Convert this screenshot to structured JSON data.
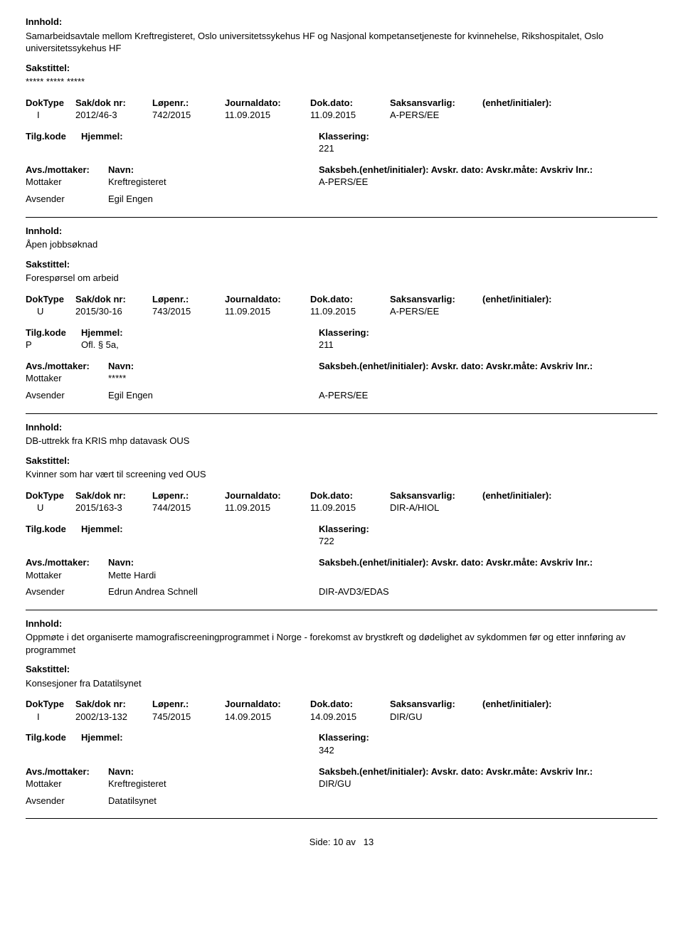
{
  "labels": {
    "innhold": "Innhold:",
    "sakstittel": "Sakstittel:",
    "doktype": "DokType",
    "sakdok": "Sak/dok nr:",
    "lopenr": "Løpenr.:",
    "journaldato": "Journaldato:",
    "dokdato": "Dok.dato:",
    "saksansvarlig": "Saksansvarlig:",
    "enhet": "(enhet/initialer):",
    "tilgkode": "Tilg.kode",
    "hjemmel": "Hjemmel:",
    "klassering": "Klassering:",
    "avsmottaker": "Avs./mottaker:",
    "navn": "Navn:",
    "saksbeh_full": "Saksbeh.(enhet/initialer): Avskr. dato:  Avskr.måte:  Avskriv lnr.:",
    "mottaker": "Mottaker",
    "avsender": "Avsender"
  },
  "records": [
    {
      "innhold_text": "Samarbeidsavtale mellom Kreftregisteret, Oslo universitetssykehus HF og Nasjonal kompetansetjeneste for kvinnehelse, Rikshospitalet, Oslo universitetssykehus HF",
      "sakstittel_text": "***** ***** *****",
      "line": {
        "doktype": "I",
        "sakdok": "2012/46-3",
        "lopenr": "742/2015",
        "journaldato": "11.09.2015",
        "dokdato": "11.09.2015",
        "saksansvarlig": "A-PERS/EE"
      },
      "tilgkode": "",
      "hjemmel": "",
      "klassering": "221",
      "parties": [
        {
          "role": "Mottaker",
          "name": "Kreftregisteret",
          "val": "A-PERS/EE"
        },
        {
          "role": "Avsender",
          "name": "Egil Engen",
          "val": ""
        }
      ]
    },
    {
      "innhold_text": "Åpen jobbsøknad",
      "sakstittel_text": "Forespørsel om arbeid",
      "line": {
        "doktype": "U",
        "sakdok": "2015/30-16",
        "lopenr": "743/2015",
        "journaldato": "11.09.2015",
        "dokdato": "11.09.2015",
        "saksansvarlig": "A-PERS/EE"
      },
      "tilgkode": "P",
      "hjemmel": "Ofl. § 5a,",
      "klassering": "211",
      "parties": [
        {
          "role": "Mottaker",
          "name": "*****",
          "val": ""
        },
        {
          "role": "Avsender",
          "name": "Egil Engen",
          "val": "A-PERS/EE"
        }
      ]
    },
    {
      "innhold_text": "DB-uttrekk fra KRIS mhp datavask OUS",
      "sakstittel_text": "Kvinner som har vært til screening ved OUS",
      "line": {
        "doktype": "U",
        "sakdok": "2015/163-3",
        "lopenr": "744/2015",
        "journaldato": "11.09.2015",
        "dokdato": "11.09.2015",
        "saksansvarlig": "DIR-A/HIOL"
      },
      "tilgkode": "",
      "hjemmel": "",
      "klassering": "722",
      "parties": [
        {
          "role": "Mottaker",
          "name": "Mette Hardi",
          "val": ""
        },
        {
          "role": "Avsender",
          "name": "Edrun Andrea Schnell",
          "val": "DIR-AVD3/EDAS"
        }
      ]
    },
    {
      "innhold_text": "Oppmøte i det organiserte mamografiscreeningprogrammet i Norge - forekomst av brystkreft og dødelighet av sykdommen før og etter innføring av programmet",
      "sakstittel_text": "Konsesjoner fra Datatilsynet",
      "line": {
        "doktype": "I",
        "sakdok": "2002/13-132",
        "lopenr": "745/2015",
        "journaldato": "14.09.2015",
        "dokdato": "14.09.2015",
        "saksansvarlig": "DIR/GU"
      },
      "tilgkode": "",
      "hjemmel": "",
      "klassering": "342",
      "parties": [
        {
          "role": "Mottaker",
          "name": "Kreftregisteret",
          "val": "DIR/GU"
        },
        {
          "role": "Avsender",
          "name": "Datatilsynet",
          "val": ""
        }
      ]
    }
  ],
  "footer": {
    "side_label": "Side:",
    "page": "10",
    "av": "av",
    "total": "13"
  }
}
